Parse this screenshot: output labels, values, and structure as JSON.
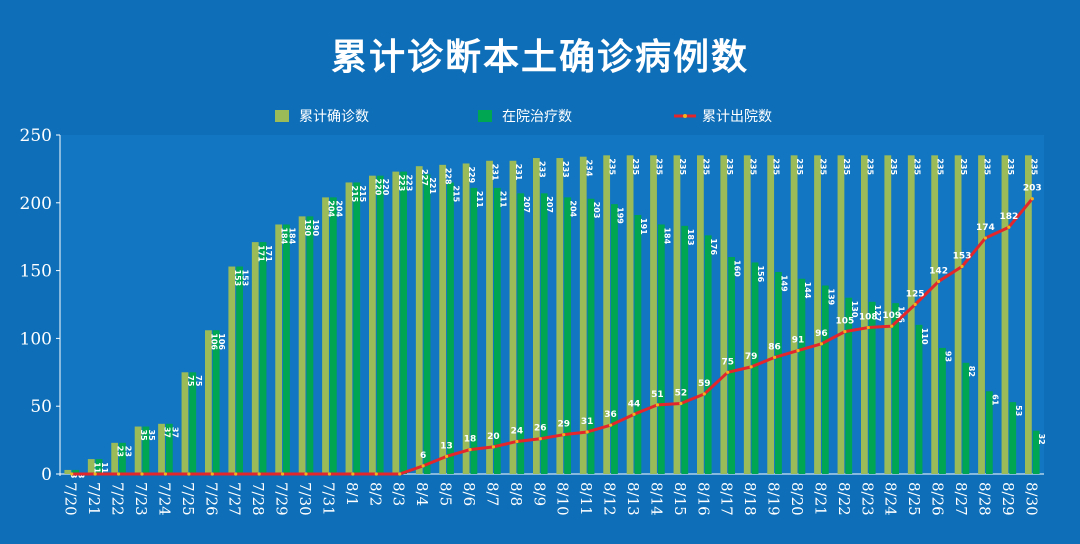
{
  "chart_data": {
    "type": "bar",
    "title": "累计诊断本土确诊病例数",
    "categories": [
      "7/20",
      "7/21",
      "7/22",
      "7/23",
      "7/24",
      "7/25",
      "7/26",
      "7/27",
      "7/28",
      "7/29",
      "7/30",
      "7/31",
      "8/1",
      "8/2",
      "8/3",
      "8/4",
      "8/5",
      "8/6",
      "8/7",
      "8/8",
      "8/9",
      "8/10",
      "8/11",
      "8/12",
      "8/13",
      "8/14",
      "8/15",
      "8/16",
      "8/17",
      "8/18",
      "8/19",
      "8/20",
      "8/21",
      "8/22",
      "8/23",
      "8/24",
      "8/25",
      "8/26",
      "8/27",
      "8/28",
      "8/29",
      "8/30"
    ],
    "series": [
      {
        "name": "累计确诊数",
        "type": "bar",
        "color": "#9bbb59",
        "values": [
          3,
          11,
          23,
          35,
          37,
          75,
          106,
          153,
          171,
          184,
          190,
          204,
          215,
          220,
          223,
          227,
          228,
          229,
          231,
          231,
          233,
          233,
          234,
          235,
          235,
          235,
          235,
          235,
          235,
          235,
          235,
          235,
          235,
          235,
          235,
          235,
          235,
          235,
          235,
          235,
          235,
          235
        ]
      },
      {
        "name": "在院治疗数",
        "type": "bar",
        "color": "#00a651",
        "values": [
          3,
          11,
          23,
          35,
          37,
          75,
          106,
          153,
          171,
          184,
          190,
          204,
          215,
          220,
          223,
          221,
          215,
          211,
          211,
          207,
          207,
          204,
          203,
          199,
          191,
          184,
          183,
          176,
          160,
          156,
          149,
          144,
          139,
          130,
          127,
          126,
          110,
          93,
          82,
          61,
          53,
          32
        ]
      },
      {
        "name": "累计出院数",
        "type": "line",
        "color": "#e3262b",
        "values": [
          0,
          0,
          0,
          0,
          0,
          0,
          0,
          0,
          0,
          0,
          0,
          0,
          0,
          0,
          0,
          6,
          13,
          18,
          20,
          24,
          26,
          29,
          31,
          36,
          44,
          51,
          52,
          59,
          75,
          79,
          86,
          91,
          96,
          105,
          108,
          109,
          125,
          142,
          153,
          174,
          182,
          203
        ]
      }
    ],
    "ylim": [
      0,
      250
    ],
    "yticks": [
      0,
      50,
      100,
      150,
      200,
      250
    ],
    "grid": false,
    "legend": "top-center"
  }
}
